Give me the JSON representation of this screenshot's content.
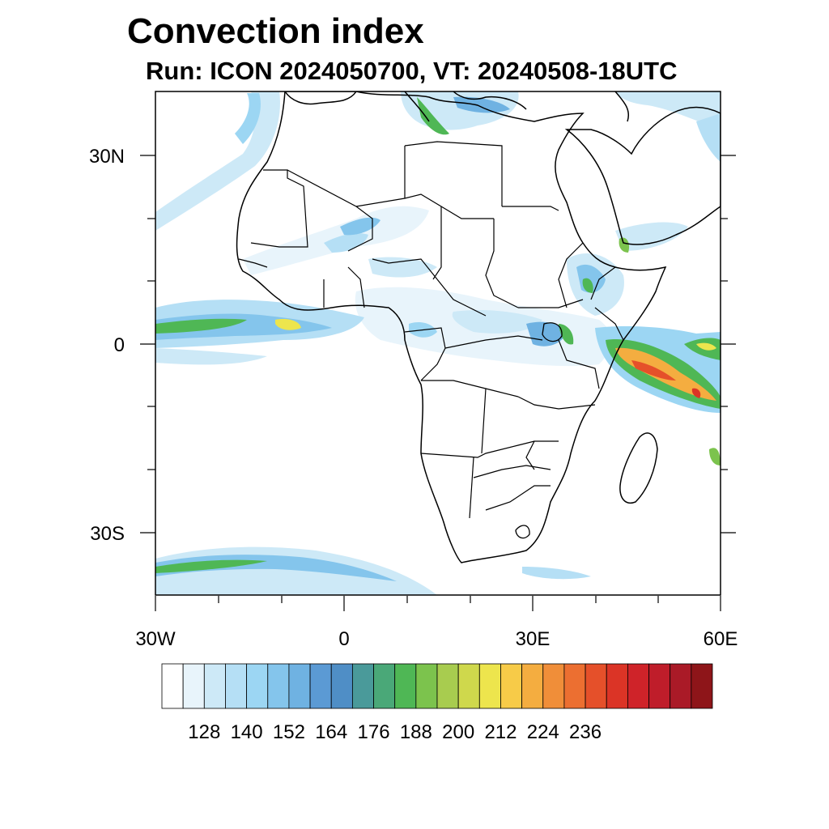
{
  "title": "Convection index",
  "subtitle": "Run: ICON 2024050700,  VT: 20240508-18UTC",
  "map": {
    "lon_range": [
      -30,
      60
    ],
    "lat_range": [
      -40,
      40
    ],
    "lat_labels": [
      "30N",
      "0",
      "30S"
    ],
    "lon_labels": [
      "30W",
      "0",
      "30E",
      "60E"
    ]
  },
  "colorbar": {
    "labels": [
      "128",
      "140",
      "152",
      "164",
      "176",
      "188",
      "200",
      "212",
      "224",
      "236"
    ],
    "colors": [
      "#ffffff",
      "#e8f4fb",
      "#cde9f7",
      "#b5dff5",
      "#9cd6f3",
      "#84c5ec",
      "#6fb2e2",
      "#5b9ad4",
      "#4f8ec6",
      "#4a9a9a",
      "#4aa878",
      "#4fb755",
      "#7cc34d",
      "#a8cc4f",
      "#cfd84c",
      "#ede54d",
      "#f7cb48",
      "#f4ad40",
      "#f08e39",
      "#ec6f31",
      "#e5502a",
      "#db3426",
      "#cf2329",
      "#bf1d2a",
      "#aa1a27",
      "#8e1519"
    ]
  }
}
